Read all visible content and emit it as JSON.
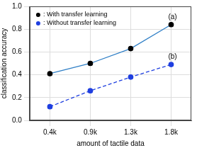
{
  "chart_data": {
    "type": "line",
    "categories": [
      "0.4k",
      "0.9k",
      "1.3k",
      "1.8k"
    ],
    "series": [
      {
        "name": ": With transfer learning",
        "color": "#2f7fc6",
        "marker": "circle",
        "line_style": "solid",
        "values": [
          0.41,
          0.5,
          0.63,
          0.84
        ]
      },
      {
        "name": ": Without transfer learning",
        "color": "#1f3fe0",
        "marker": "circle",
        "line_style": "dashed",
        "values": [
          0.12,
          0.26,
          0.38,
          0.49
        ]
      }
    ],
    "x_label": "amount of tactile data",
    "y_label": "classification accuracy",
    "ylim": [
      0,
      1
    ],
    "yticks": [
      {
        "value": 0,
        "label": "0.0"
      },
      0.2,
      0.4,
      0.6,
      0.8,
      {
        "value": 1,
        "label": "1.0"
      }
    ],
    "annotations": [
      "(a)",
      "(b)"
    ],
    "legend": "upper left",
    "grid": true
  }
}
